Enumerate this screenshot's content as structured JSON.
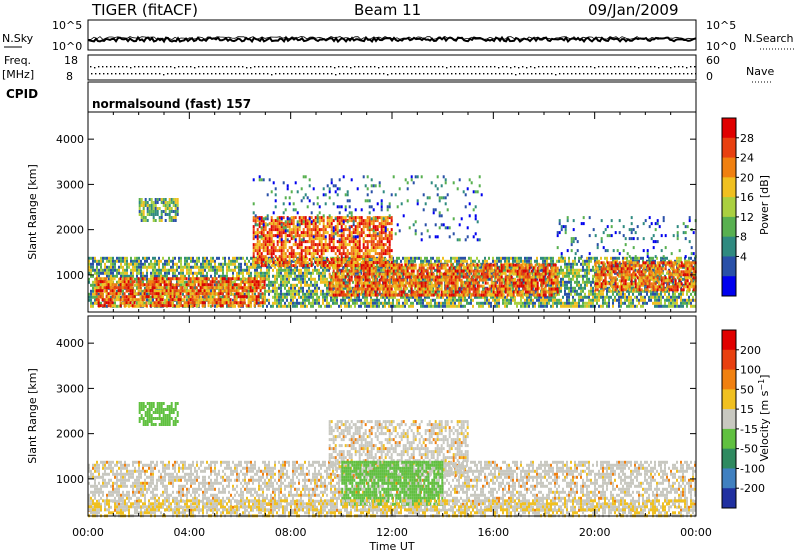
{
  "header": {
    "radar": "TIGER (fitACF)",
    "beam": "Beam 11",
    "date": "09/Jan/2009"
  },
  "status_panels": {
    "nsky_label": "N.Sky",
    "nsky_ticks": [
      "10^5",
      "10^0"
    ],
    "nsearch_label": "N.Search",
    "nsearch_ticks": [
      "10^5",
      "10^0"
    ],
    "freq_label_top": "Freq.",
    "freq_label_unit": "[MHz]",
    "freq_ticks": [
      "18",
      "8"
    ],
    "nave_label": "Nave",
    "nave_ticks": [
      "60",
      "0"
    ],
    "cpid_label": "CPID",
    "cpid_text": "normalsound (fast) 157"
  },
  "chart_data": [
    {
      "type": "heatmap",
      "name": "Power",
      "ylabel": "Slant Range [km]",
      "xlabel": "",
      "x_ticks": [
        "00:00",
        "04:00",
        "08:00",
        "12:00",
        "16:00",
        "20:00",
        "00:00"
      ],
      "x_range_hours": [
        0,
        24
      ],
      "y_ticks": [
        1000,
        2000,
        3000,
        4000
      ],
      "ylim": [
        180,
        4600
      ],
      "colorbar": {
        "label": "Power [dB]",
        "ticks": [
          "28",
          "24",
          "20",
          "16",
          "12",
          "8",
          "4"
        ],
        "colors": [
          "#0000ee",
          "#2950a8",
          "#2f8a80",
          "#58b050",
          "#aad040",
          "#f0c020",
          "#f08010",
          "#e84010",
          "#e00000"
        ]
      },
      "echo_regions": [
        {
          "t0": 0.0,
          "t1": 24.0,
          "r0": 280,
          "r1": 1400,
          "level": "mid"
        },
        {
          "t0": 0.3,
          "t1": 7.0,
          "r0": 350,
          "r1": 950,
          "level": "high"
        },
        {
          "t0": 9.5,
          "t1": 18.5,
          "r0": 550,
          "r1": 1250,
          "level": "high"
        },
        {
          "t0": 6.5,
          "t1": 12.0,
          "r0": 1200,
          "r1": 2300,
          "level": "high"
        },
        {
          "t0": 20.0,
          "t1": 24.0,
          "r0": 700,
          "r1": 1300,
          "level": "high"
        },
        {
          "t0": 2.0,
          "t1": 3.5,
          "r0": 2200,
          "r1": 2700,
          "level": "mid"
        },
        {
          "t0": 6.5,
          "t1": 15.5,
          "r0": 1800,
          "r1": 3200,
          "level": "low"
        },
        {
          "t0": 18.5,
          "t1": 24.0,
          "r0": 1400,
          "r1": 2300,
          "level": "low"
        }
      ]
    },
    {
      "type": "heatmap",
      "name": "Velocity",
      "ylabel": "Slant Range [km]",
      "xlabel": "Time UT",
      "x_ticks": [
        "00:00",
        "04:00",
        "08:00",
        "12:00",
        "16:00",
        "20:00",
        "00:00"
      ],
      "x_range_hours": [
        0,
        24
      ],
      "y_ticks": [
        1000,
        2000,
        3000,
        4000
      ],
      "ylim": [
        180,
        4600
      ],
      "colorbar": {
        "label": "Velocity [m s^-1]",
        "ticks": [
          "200",
          "100",
          "50",
          "15",
          "-15",
          "-50",
          "-100",
          "-200"
        ],
        "colors": [
          "#2030a0",
          "#4080c0",
          "#2f8a60",
          "#60c040",
          "#c8c8c0",
          "#f0c020",
          "#f08010",
          "#e84010",
          "#e00000"
        ]
      },
      "echo_regions": [
        {
          "t0": 0.0,
          "t1": 24.0,
          "r0": 280,
          "r1": 1400,
          "level": "gray"
        },
        {
          "t0": 9.5,
          "t1": 15.0,
          "r0": 1100,
          "r1": 2300,
          "level": "gray"
        },
        {
          "t0": 10.0,
          "t1": 14.0,
          "r0": 450,
          "r1": 1400,
          "level": "green"
        },
        {
          "t0": 2.0,
          "t1": 3.5,
          "r0": 2200,
          "r1": 2700,
          "level": "green"
        },
        {
          "t0": 0.0,
          "t1": 24.0,
          "r0": 200,
          "r1": 550,
          "level": "orange"
        }
      ]
    }
  ],
  "time_series": {
    "nsky_level": 0.35,
    "freq_mhz_mean": 12,
    "nave_mean": 30
  },
  "colors": {
    "axis": "#000000",
    "background": "#ffffff"
  }
}
